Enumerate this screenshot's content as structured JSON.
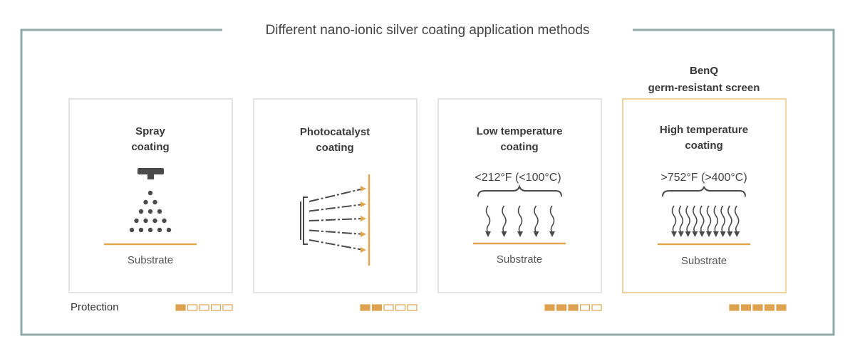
{
  "title": "Different nano-ionic silver coating application methods",
  "protection_label": "Protection",
  "protection_scale": 5,
  "cards": [
    {
      "title": [
        "Spray",
        "coating"
      ],
      "substrate": "Substrate",
      "protection": 1
    },
    {
      "title": [
        "Photocatalyst",
        "coating"
      ],
      "protection": 2
    },
    {
      "title": [
        "Low temperature",
        "coating"
      ],
      "temperature": "<212°F (<100°C)",
      "substrate": "Substrate",
      "protection": 3
    },
    {
      "title": [
        "High temperature",
        "coating"
      ],
      "temperature": ">752°F (>400°C)",
      "substrate": "Substrate",
      "protection": 5,
      "brand": "BenQ",
      "brand_note": "germ-resistant screen"
    }
  ]
}
